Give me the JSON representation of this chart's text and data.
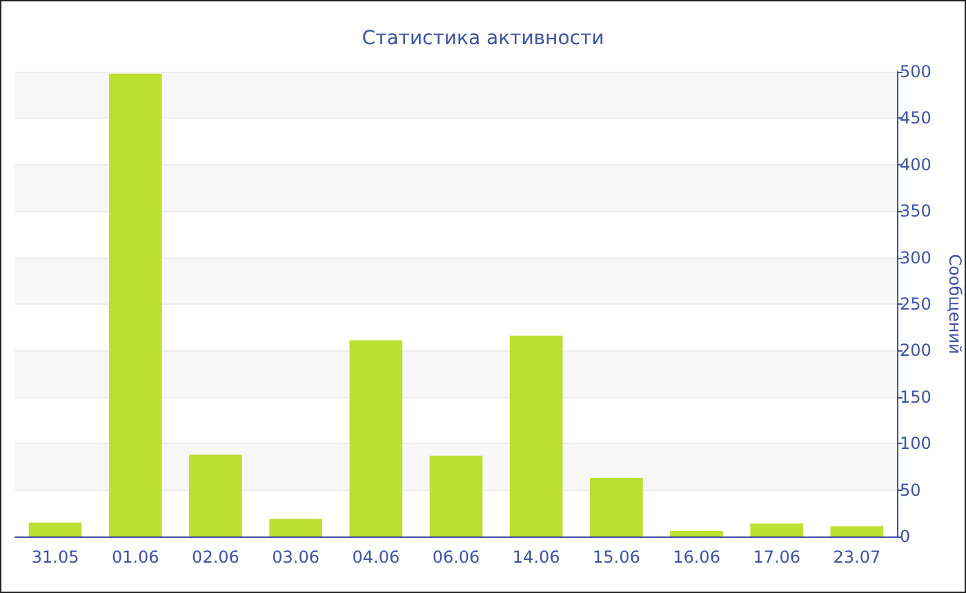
{
  "chart_data": {
    "type": "bar",
    "title": "Статистика активности",
    "ylabel": "Сообщений",
    "categories": [
      "31.05",
      "01.06",
      "02.06",
      "03.06",
      "04.06",
      "06.06",
      "14.06",
      "15.06",
      "16.06",
      "17.06",
      "23.07"
    ],
    "values": [
      15,
      498,
      88,
      19,
      211,
      87,
      216,
      63,
      6,
      14,
      11
    ],
    "color": "#bbe02f",
    "ylim": [
      0,
      500
    ],
    "yticks": [
      0,
      50,
      100,
      150,
      200,
      250,
      300,
      350,
      400,
      450,
      500
    ],
    "grid": "y"
  }
}
